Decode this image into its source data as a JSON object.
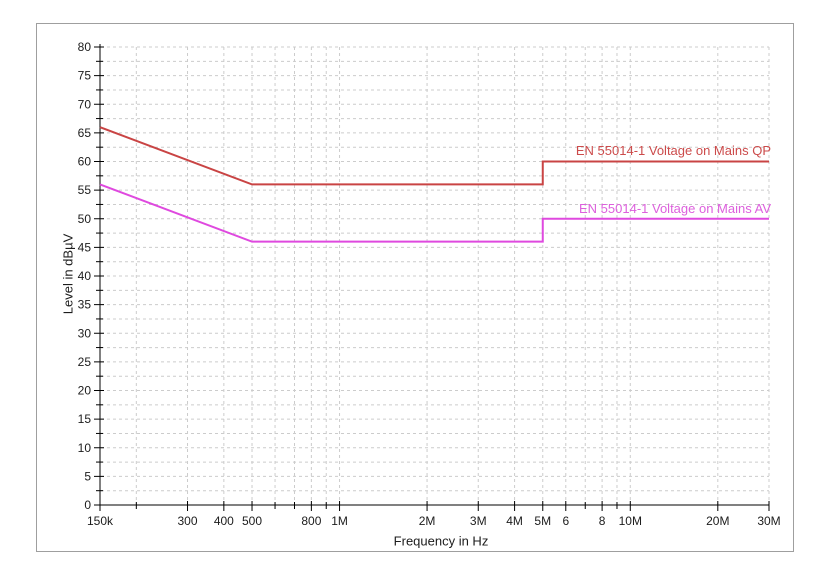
{
  "window": {
    "background_color": "#ffffff",
    "panel_border_color": "#9f9f9f"
  },
  "chart_data": {
    "type": "line",
    "title": "",
    "xlabel": "Frequency in Hz",
    "ylabel": "Level in dBµV",
    "x_scale": "log",
    "x_min_hz": 150000,
    "x_max_hz": 30000000,
    "ylim": [
      0,
      80
    ],
    "y_major_step": 5,
    "y_minor_step": 2.5,
    "y_tick_labels": [
      "0",
      "5",
      "10",
      "15",
      "20",
      "25",
      "30",
      "35",
      "40",
      "45",
      "50",
      "55",
      "60",
      "65",
      "70",
      "75",
      "80"
    ],
    "x_ticks": [
      {
        "hz": 150000,
        "label": "150k"
      },
      {
        "hz": 200000,
        "label": ""
      },
      {
        "hz": 300000,
        "label": "300"
      },
      {
        "hz": 400000,
        "label": "400"
      },
      {
        "hz": 500000,
        "label": "500"
      },
      {
        "hz": 600000,
        "label": ""
      },
      {
        "hz": 700000,
        "label": ""
      },
      {
        "hz": 800000,
        "label": "800"
      },
      {
        "hz": 900000,
        "label": ""
      },
      {
        "hz": 1000000,
        "label": "1M"
      },
      {
        "hz": 2000000,
        "label": "2M"
      },
      {
        "hz": 3000000,
        "label": "3M"
      },
      {
        "hz": 4000000,
        "label": "4M"
      },
      {
        "hz": 5000000,
        "label": "5M"
      },
      {
        "hz": 6000000,
        "label": "6"
      },
      {
        "hz": 7000000,
        "label": ""
      },
      {
        "hz": 8000000,
        "label": "8"
      },
      {
        "hz": 9000000,
        "label": ""
      },
      {
        "hz": 10000000,
        "label": "10M"
      },
      {
        "hz": 20000000,
        "label": "20M"
      },
      {
        "hz": 30000000,
        "label": "30M"
      }
    ],
    "grid": {
      "style": "dashed",
      "color": "#cccccc"
    },
    "axis_color": "#000000",
    "tick_label_color": "#1c1c1c",
    "legend_position": "inline-right-above-lines",
    "series": [
      {
        "name": "EN 55014-1 Voltage on Mains QP",
        "color": "#c94444",
        "label_color": "#cc4b4b",
        "points_hz_db": [
          [
            150000,
            66
          ],
          [
            500000,
            56
          ],
          [
            5000000,
            56
          ],
          [
            5000000,
            60
          ],
          [
            30000000,
            60
          ]
        ]
      },
      {
        "name": "EN 55014-1 Voltage on Mains AV",
        "color": "#df49df",
        "label_color": "#dd60dd",
        "points_hz_db": [
          [
            150000,
            56
          ],
          [
            500000,
            46
          ],
          [
            5000000,
            46
          ],
          [
            5000000,
            50
          ],
          [
            30000000,
            50
          ]
        ]
      }
    ]
  }
}
